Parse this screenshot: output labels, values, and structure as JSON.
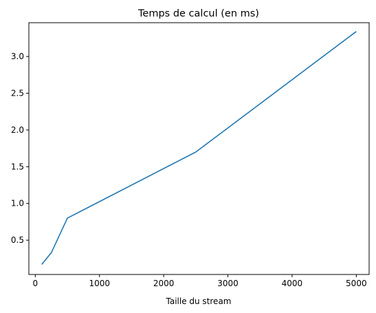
{
  "chart_data": {
    "type": "line",
    "title": "Temps de calcul (en ms)",
    "xlabel": "Taille du stream",
    "ylabel": "",
    "xlim": [
      -100,
      5200
    ],
    "ylim": [
      0.0332,
      3.46
    ],
    "xticks": [
      0,
      1000,
      2000,
      3000,
      4000,
      5000
    ],
    "yticks": [
      0.5,
      1.0,
      1.5,
      2.0,
      2.5,
      3.0
    ],
    "xtick_labels": [
      "0",
      "1000",
      "2000",
      "3000",
      "4000",
      "5000"
    ],
    "ytick_labels": [
      "0.5",
      "1.0",
      "1.5",
      "2.0",
      "2.5",
      "3.0"
    ],
    "grid": false,
    "legend": "none",
    "series": [
      {
        "color": "#1f77b4",
        "x": [
          100,
          250,
          500,
          2500,
          5000
        ],
        "y": [
          0.17,
          0.33,
          0.8,
          1.7,
          3.34
        ]
      }
    ]
  }
}
